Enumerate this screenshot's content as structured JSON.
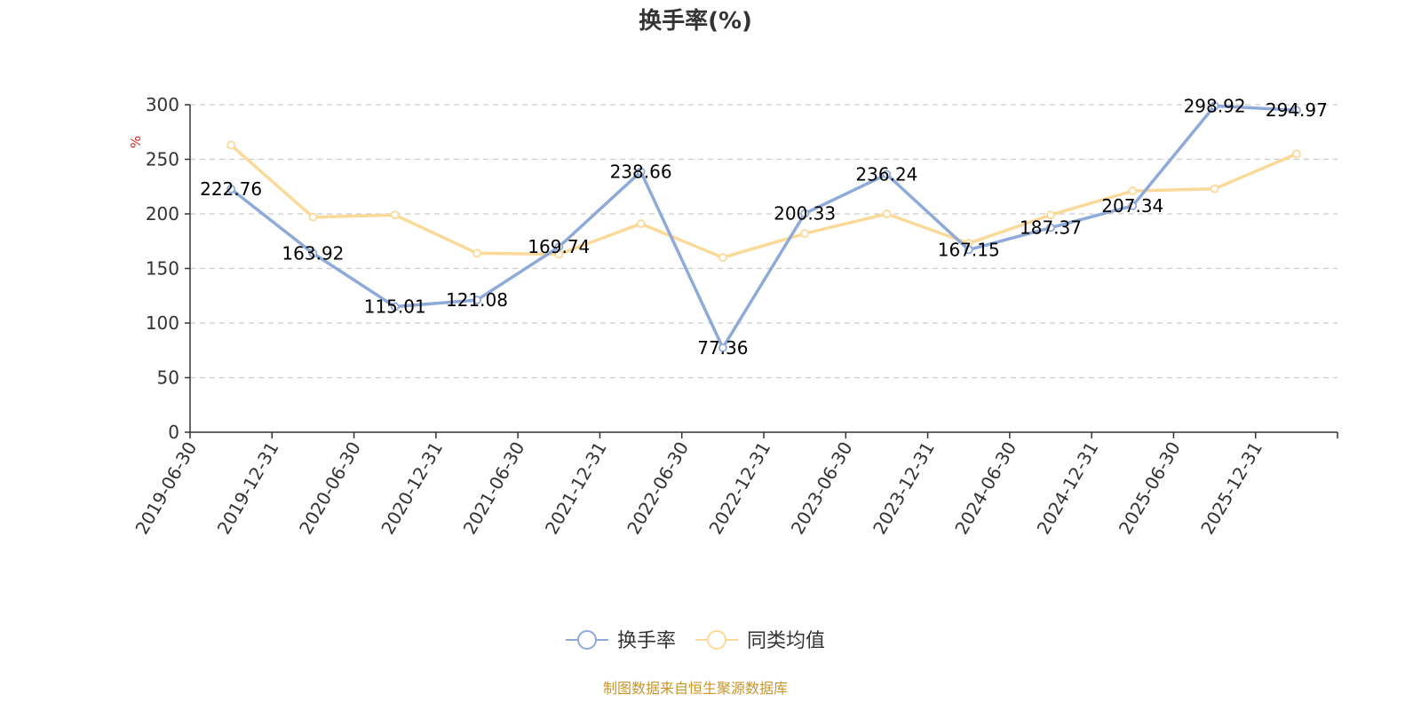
{
  "chart_data": {
    "type": "line",
    "title": "换手率(%)",
    "ylabel": "%",
    "ylim": [
      0,
      300
    ],
    "yticks": [
      0,
      50,
      100,
      150,
      200,
      250,
      300
    ],
    "grid": true,
    "legend_position": "bottom",
    "categories": [
      "2019-06-30",
      "2019-12-31",
      "2020-06-30",
      "2020-12-31",
      "2021-06-30",
      "2021-12-31",
      "2022-06-30",
      "2022-12-31",
      "2023-06-30",
      "2023-12-31",
      "2024-06-30",
      "2024-12-31",
      "2025-06-30",
      "2025-12-31"
    ],
    "series": [
      {
        "name": "换手率",
        "color": "#8eaad8",
        "values": [
          222.76,
          163.92,
          115.01,
          121.08,
          169.74,
          238.66,
          77.36,
          200.33,
          236.24,
          167.15,
          187.37,
          207.34,
          298.92,
          294.97
        ],
        "labels": [
          "222.76",
          "163.92",
          "115.01",
          "121.08",
          "169.74",
          "238.66",
          "77.36",
          "200.33",
          "236.24",
          "167.15",
          "187.37",
          "207.34",
          "298.92",
          "294.97"
        ],
        "show_labels": true
      },
      {
        "name": "同类均值",
        "color": "#fbd999",
        "values": [
          263,
          197,
          199,
          164,
          163,
          191,
          160,
          182,
          200,
          173,
          199,
          221,
          223,
          255
        ],
        "show_labels": false
      }
    ],
    "source": "制图数据来自恒生聚源数据库"
  }
}
